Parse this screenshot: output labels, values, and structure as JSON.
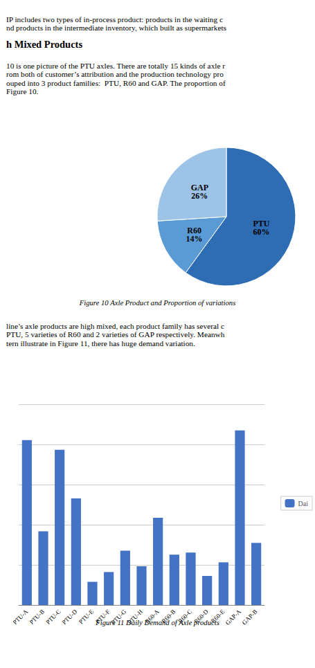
{
  "chart_data": [
    {
      "type": "pie",
      "title": "Figure 10 Axle Product and Proportion of variations",
      "annotations": [
        "IP includes two types of in-process product: products in the waiting c",
        "nd products in the intermediate inventory, which built as supermarkets",
        "h Mixed Products",
        "10 is one picture of the PTU axles. There are totally 15 kinds of axle r",
        "rom both of customer’s attribution and the production technology pro",
        "ouped into 3 product families:  PTU, R60 and GAP. The proportion of",
        "Figure 10."
      ],
      "categories": [
        "PTU",
        "R60",
        "GAP"
      ],
      "values": [
        60,
        14,
        26
      ],
      "value_labels": [
        "60%",
        "14%",
        "26%"
      ],
      "colors": [
        "#2E6DB4",
        "#5B9BD5",
        "#9DC3E6"
      ],
      "data_labels": true
    },
    {
      "type": "bar",
      "title": "Figure 11 Daily Demand of Axle products",
      "annotations": [
        "line’s axle products are high mixed, each product family has several c",
        "PTU, 5 varieties of R60 and 2 varieties of GAP respectively. Meanwh",
        "tern illustrate in Figure 11, there has huge demand variation."
      ],
      "categories": [
        "PTU-A",
        "PTU-B",
        "PTU-C",
        "PTU-D",
        "PTU-E",
        "PTU-F",
        "PTU-G",
        "PTU-H",
        "R60-A",
        "R60-B",
        "R60-C",
        "R60-D",
        "R60-E",
        "GAP-A",
        "GAP-B"
      ],
      "series": [
        {
          "name": "Dai",
          "color": "#4472C4",
          "values": [
            85,
            38,
            80,
            55,
            12,
            17,
            28,
            20,
            45,
            26,
            27,
            15,
            22,
            90,
            32
          ]
        }
      ],
      "ylim": [
        0,
        103.5
      ],
      "yticks": [
        0,
        20.7,
        41.4,
        62.1,
        82.8,
        103.5
      ],
      "grid": true,
      "tick_labels": "x",
      "legend": "right"
    }
  ]
}
